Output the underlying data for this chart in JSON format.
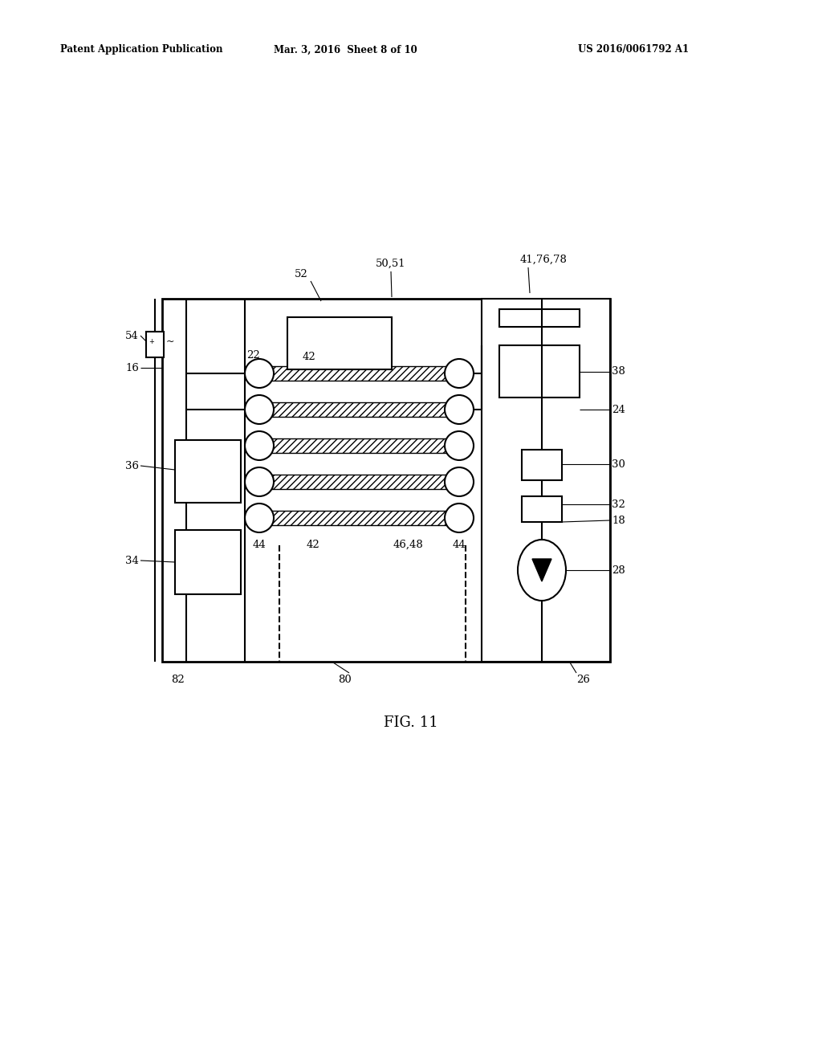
{
  "bg_color": "#ffffff",
  "header_left": "Patent Application Publication",
  "header_mid": "Mar. 3, 2016  Sheet 8 of 10",
  "header_right": "US 2016/0061792 A1",
  "fig_label": "FIG. 11",
  "line_color": "#000000"
}
